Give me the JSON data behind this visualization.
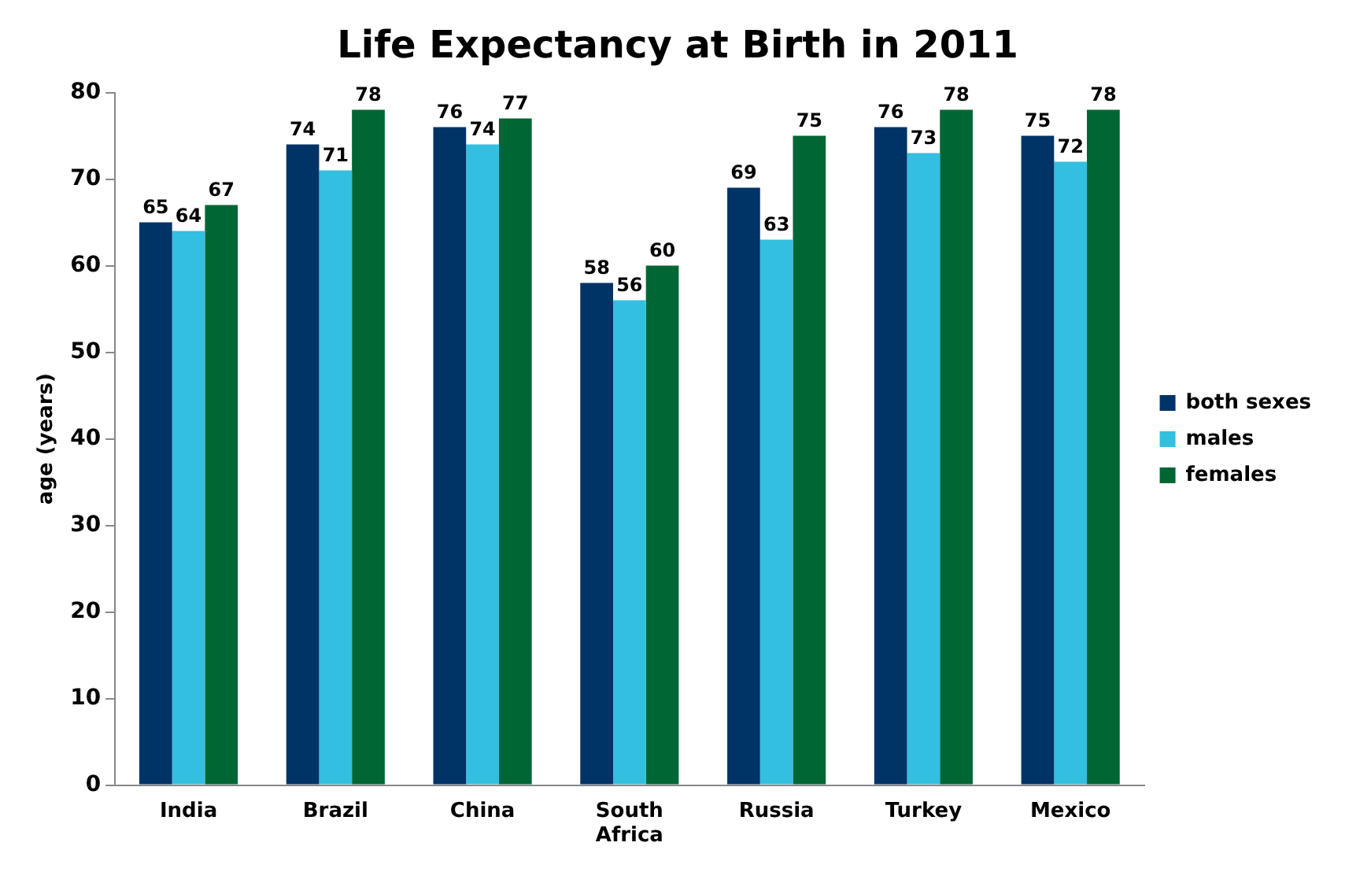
{
  "chart_data": {
    "type": "bar",
    "title": "Life Expectancy at Birth in 2011",
    "ylabel": "age (years)",
    "categories": [
      "India",
      "Brazil",
      "China",
      "South Africa",
      "Russia",
      "Turkey",
      "Mexico"
    ],
    "series": [
      {
        "name": "both sexes",
        "color": "#003366",
        "values": [
          65,
          74,
          76,
          58,
          69,
          76,
          75
        ]
      },
      {
        "name": "males",
        "color": "#33bfdf",
        "values": [
          64,
          71,
          74,
          56,
          63,
          73,
          72
        ]
      },
      {
        "name": "females",
        "color": "#006633",
        "values": [
          67,
          78,
          77,
          60,
          75,
          78,
          78
        ]
      }
    ],
    "ylim": [
      0,
      80
    ],
    "yticks": [
      0,
      10,
      20,
      30,
      40,
      50,
      60,
      70,
      80
    ],
    "grid": false,
    "legend": "right",
    "data_labels": true
  }
}
